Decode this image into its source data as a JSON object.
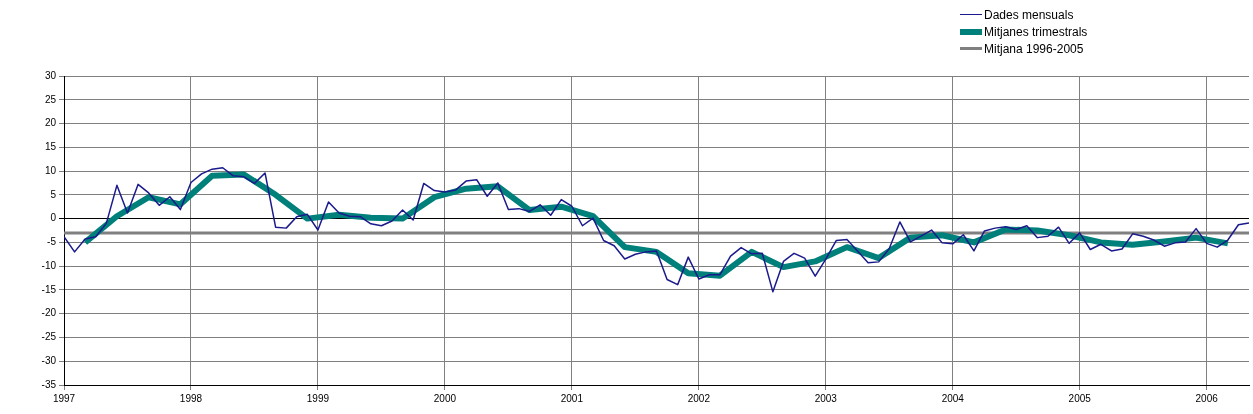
{
  "chart_data": {
    "type": "line",
    "xlim": [
      "1997-01",
      "2006-05"
    ],
    "xticks": [
      "1997",
      "1998",
      "1999",
      "2000",
      "2001",
      "2002",
      "2003",
      "2004",
      "2005",
      "2006"
    ],
    "ylim": [
      -35,
      30
    ],
    "yticks": [
      -35,
      -30,
      -25,
      -20,
      -15,
      -10,
      -5,
      0,
      5,
      10,
      15,
      20,
      25,
      30
    ],
    "grid": true,
    "legend": "top right",
    "marker": "none",
    "line_style": "solid",
    "ref_lines": [
      {
        "axis": "y",
        "value": -3,
        "label": "Mitjana 1996-2005",
        "color": "#808080"
      }
    ],
    "series": [
      {
        "name": "Dades mensuals",
        "color": "#1a1a8c",
        "x": [
          "1997-01",
          "1997-02",
          "1997-03",
          "1997-04",
          "1997-05",
          "1997-06",
          "1997-07",
          "1997-08",
          "1997-09",
          "1997-10",
          "1997-11",
          "1997-12",
          "1998-01",
          "1998-02",
          "1998-03",
          "1998-04",
          "1998-05",
          "1998-06",
          "1998-07",
          "1998-08",
          "1998-09",
          "1998-10",
          "1998-11",
          "1998-12",
          "1999-01",
          "1999-02",
          "1999-03",
          "1999-04",
          "1999-05",
          "1999-06",
          "1999-07",
          "1999-08",
          "1999-09",
          "1999-10",
          "1999-11",
          "1999-12",
          "2000-01",
          "2000-02",
          "2000-03",
          "2000-04",
          "2000-05",
          "2000-06",
          "2000-07",
          "2000-08",
          "2000-09",
          "2000-10",
          "2000-11",
          "2000-12",
          "2001-01",
          "2001-02",
          "2001-03",
          "2001-04",
          "2001-05",
          "2001-06",
          "2001-07",
          "2001-08",
          "2001-09",
          "2001-10",
          "2001-11",
          "2001-12",
          "2002-01",
          "2002-02",
          "2002-03",
          "2002-04",
          "2002-05",
          "2002-06",
          "2002-07",
          "2002-08",
          "2002-09",
          "2002-10",
          "2002-11",
          "2002-12",
          "2003-01",
          "2003-02",
          "2003-03",
          "2003-04",
          "2003-05",
          "2003-06",
          "2003-07",
          "2003-08",
          "2003-09",
          "2003-10",
          "2003-11",
          "2003-12",
          "2004-01",
          "2004-02",
          "2004-03",
          "2004-04",
          "2004-05",
          "2004-06",
          "2004-07",
          "2004-08",
          "2004-09",
          "2004-10",
          "2004-11",
          "2004-12",
          "2005-01",
          "2005-02",
          "2005-03",
          "2005-04",
          "2005-05",
          "2005-06",
          "2005-07",
          "2005-08",
          "2005-09",
          "2005-10",
          "2005-11",
          "2005-12",
          "2006-01",
          "2006-02",
          "2006-03",
          "2006-04",
          "2006-05"
        ],
        "values": [
          -3.8,
          -7,
          -4.3,
          -3.8,
          -1,
          7,
          1.2,
          7.2,
          5.4,
          2.8,
          4.6,
          1.9,
          7.6,
          9.4,
          10.4,
          10.7,
          9,
          8.8,
          7.4,
          9.6,
          -1.8,
          -2,
          0.4,
          0.9,
          -2.4,
          3.5,
          1.2,
          0.5,
          0.4,
          -1.1,
          -1.5,
          -0.5,
          1.8,
          -0.3,
          7.4,
          5.9,
          5.6,
          6,
          7.9,
          8.2,
          4.7,
          7.5,
          1.9,
          2.1,
          1.5,
          2.9,
          0.7,
          4,
          2.6,
          -1.5,
          0.1,
          -4.6,
          -5.7,
          -8.5,
          -7.5,
          -7,
          -6.8,
          -12.8,
          -13.9,
          -8.1,
          -12.7,
          -11.8,
          -11.8,
          -7.9,
          -6.1,
          -7.4,
          -7.3,
          -15.4,
          -9,
          -7.3,
          -8.3,
          -12.1,
          -8.5,
          -4.6,
          -4.4,
          -6.8,
          -9.3,
          -9.1,
          -6.3,
          -0.7,
          -4.9,
          -3.7,
          -2.4,
          -5.1,
          -5.3,
          -3.4,
          -6.8,
          -2.6,
          -2,
          -1.7,
          -2.3,
          -1.5,
          -4,
          -3.7,
          -1.8,
          -5.2,
          -3,
          -6.5,
          -5.4,
          -6.8,
          -6.4,
          -3.2,
          -3.7,
          -4.5,
          -5.8,
          -5.1,
          -4.9,
          -2.1,
          -5.2,
          -6,
          -4.5,
          -1.3,
          -0.9
        ]
      },
      {
        "name": "Mitjanes trimestrals",
        "color": "#00807a",
        "x": [
          "1997-03",
          "1997-06",
          "1997-09",
          "1997-12",
          "1998-03",
          "1998-06",
          "1998-09",
          "1998-12",
          "1999-03",
          "1999-06",
          "1999-09",
          "1999-12",
          "2000-03",
          "2000-06",
          "2000-09",
          "2000-12",
          "2001-03",
          "2001-06",
          "2001-09",
          "2001-12",
          "2002-03",
          "2002-06",
          "2002-09",
          "2002-12",
          "2003-03",
          "2003-06",
          "2003-09",
          "2003-12",
          "2004-03",
          "2004-06",
          "2004-09",
          "2004-12",
          "2005-03",
          "2005-06",
          "2005-09",
          "2005-12",
          "2006-03"
        ],
        "values": [
          -5,
          0.5,
          4.5,
          3,
          9,
          9.3,
          5,
          0,
          0.8,
          0.2,
          0,
          4.5,
          6.3,
          6.8,
          1.8,
          2.5,
          0.5,
          -6,
          -7,
          -11.5,
          -12,
          -7,
          -10.2,
          -9,
          -6,
          -8.3,
          -4,
          -3.5,
          -5,
          -2.3,
          -2.5,
          -3.5,
          -5,
          -5.5,
          -4.8,
          -4,
          -5.2
        ]
      }
    ]
  }
}
